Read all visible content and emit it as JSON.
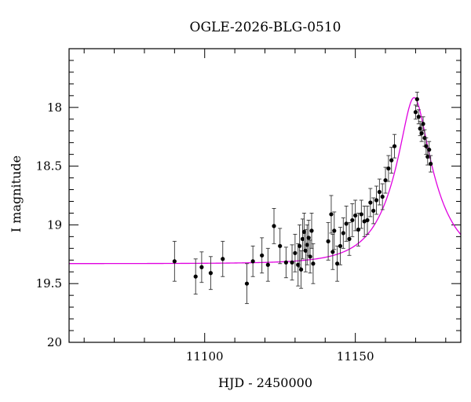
{
  "chart_data": {
    "type": "scatter",
    "title": "OGLE-2026-BLG-0510",
    "xlabel": "HJD - 2450000",
    "ylabel": "I magnitude",
    "xlim": [
      11055,
      11185
    ],
    "ylim": [
      20,
      17.5
    ],
    "y_inverted": true,
    "x_ticks": [
      11100,
      11150
    ],
    "y_ticks": [
      18,
      18.5,
      19,
      19.5,
      20
    ],
    "x_tick_labels": [
      "11100",
      "11150"
    ],
    "y_tick_labels": [
      "18",
      "18.5",
      "19",
      "19.5",
      "20"
    ],
    "grid": false,
    "legend": "none",
    "model": {
      "name": "",
      "color": "#e000e0",
      "t0": 11169.5,
      "u0": 0.28,
      "tE": 14,
      "I_base": 19.33
    },
    "series": [
      {
        "name": "",
        "color": "#000000",
        "points": [
          [
            11090,
            19.31,
            0.17
          ],
          [
            11097,
            19.44,
            0.15
          ],
          [
            11099,
            19.36,
            0.13
          ],
          [
            11102,
            19.41,
            0.14
          ],
          [
            11106,
            19.29,
            0.15
          ],
          [
            11114,
            19.5,
            0.17
          ],
          [
            11116,
            19.31,
            0.13
          ],
          [
            11119,
            19.26,
            0.15
          ],
          [
            11121,
            19.34,
            0.14
          ],
          [
            11123,
            19.01,
            0.15
          ],
          [
            11125,
            19.18,
            0.15
          ],
          [
            11127,
            19.32,
            0.13
          ],
          [
            11129,
            19.32,
            0.15
          ],
          [
            11130,
            19.24,
            0.16
          ],
          [
            11131,
            19.34,
            0.18
          ],
          [
            11131.5,
            19.18,
            0.18
          ],
          [
            11132,
            19.38,
            0.16
          ],
          [
            11132.5,
            19.12,
            0.17
          ],
          [
            11133,
            19.06,
            0.16
          ],
          [
            11133.5,
            19.22,
            0.18
          ],
          [
            11134,
            19.17,
            0.17
          ],
          [
            11134.5,
            19.11,
            0.15
          ],
          [
            11135,
            19.27,
            0.14
          ],
          [
            11135.5,
            19.05,
            0.15
          ],
          [
            11136,
            19.33,
            0.17
          ],
          [
            11141,
            19.14,
            0.16
          ],
          [
            11142,
            18.91,
            0.16
          ],
          [
            11142.5,
            19.23,
            0.15
          ],
          [
            11143,
            19.05,
            0.16
          ],
          [
            11144,
            19.33,
            0.15
          ],
          [
            11145,
            19.18,
            0.16
          ],
          [
            11146,
            19.07,
            0.13
          ],
          [
            11147,
            18.99,
            0.15
          ],
          [
            11148,
            19.12,
            0.14
          ],
          [
            11149,
            18.96,
            0.14
          ],
          [
            11150,
            18.92,
            0.13
          ],
          [
            11151,
            19.04,
            0.14
          ],
          [
            11152,
            18.91,
            0.12
          ],
          [
            11153,
            18.97,
            0.13
          ],
          [
            11154,
            18.96,
            0.12
          ],
          [
            11155,
            18.81,
            0.12
          ],
          [
            11156,
            18.88,
            0.11
          ],
          [
            11157,
            18.79,
            0.12
          ],
          [
            11158,
            18.72,
            0.11
          ],
          [
            11159,
            18.76,
            0.11
          ],
          [
            11160,
            18.62,
            0.11
          ],
          [
            11161,
            18.52,
            0.11
          ],
          [
            11162,
            18.45,
            0.11
          ],
          [
            11163,
            18.33,
            0.1
          ],
          [
            11170,
            18.04,
            0.06
          ],
          [
            11170.5,
            17.93,
            0.06
          ],
          [
            11171,
            18.08,
            0.06
          ],
          [
            11171.5,
            18.18,
            0.06
          ],
          [
            11172,
            18.22,
            0.07
          ],
          [
            11172.5,
            18.14,
            0.06
          ],
          [
            11173,
            18.26,
            0.07
          ],
          [
            11173.5,
            18.33,
            0.07
          ],
          [
            11174,
            18.42,
            0.07
          ],
          [
            11174.5,
            18.36,
            0.07
          ],
          [
            11175,
            18.48,
            0.07
          ]
        ]
      }
    ]
  }
}
